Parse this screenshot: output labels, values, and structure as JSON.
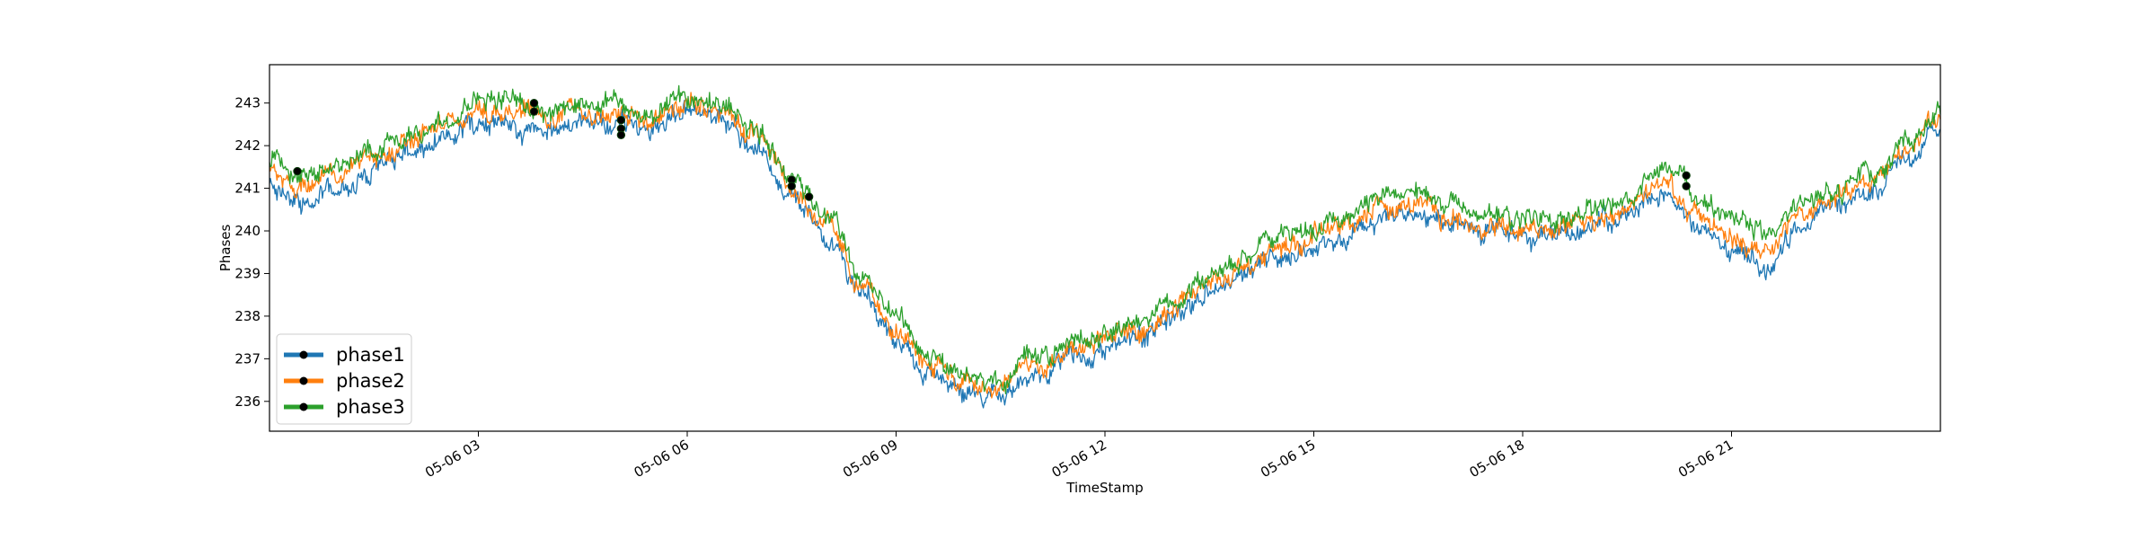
{
  "chart_data": {
    "type": "line",
    "title": "",
    "xlabel": "TimeStamp",
    "ylabel": "Phases",
    "x_unit": "hours",
    "xlim": [
      0,
      24
    ],
    "ylim": [
      235.3,
      243.9
    ],
    "grid": false,
    "legend": {
      "placement": "lower-left",
      "marker": "black dot on line"
    },
    "x_ticks": [
      {
        "value": 3,
        "label": "05-06 03"
      },
      {
        "value": 6,
        "label": "05-06 06"
      },
      {
        "value": 9,
        "label": "05-06 09"
      },
      {
        "value": 12,
        "label": "05-06 12"
      },
      {
        "value": 15,
        "label": "05-06 15"
      },
      {
        "value": 18,
        "label": "05-06 18"
      },
      {
        "value": 21,
        "label": "05-06 21"
      }
    ],
    "y_ticks": [
      {
        "value": 236,
        "label": "236"
      },
      {
        "value": 237,
        "label": "237"
      },
      {
        "value": 238,
        "label": "238"
      },
      {
        "value": 239,
        "label": "239"
      },
      {
        "value": 240,
        "label": "240"
      },
      {
        "value": 241,
        "label": "241"
      },
      {
        "value": 242,
        "label": "242"
      },
      {
        "value": 243,
        "label": "243"
      }
    ],
    "series": [
      {
        "name": "phase1",
        "color": "#1f77b4",
        "x": [
          0,
          0.5,
          1,
          1.5,
          2,
          2.5,
          3,
          3.5,
          4,
          4.5,
          5,
          5.5,
          6,
          6.5,
          7,
          7.5,
          8,
          8.5,
          9,
          9.5,
          10,
          10.5,
          11,
          11.5,
          12,
          12.5,
          13,
          13.5,
          14,
          14.5,
          15,
          15.5,
          16,
          16.5,
          17,
          17.5,
          18,
          18.5,
          19,
          19.5,
          20,
          20.5,
          21,
          21.5,
          22,
          22.5,
          23,
          23.5,
          24
        ],
        "values": [
          241.0,
          240.6,
          241.0,
          241.4,
          241.8,
          242.1,
          242.6,
          242.5,
          242.4,
          242.5,
          242.5,
          242.3,
          242.9,
          242.6,
          242.0,
          240.8,
          239.9,
          238.4,
          237.4,
          236.6,
          236.2,
          236.2,
          236.6,
          237.0,
          237.2,
          237.6,
          238.0,
          238.6,
          239.0,
          239.4,
          239.6,
          239.9,
          240.3,
          240.4,
          240.1,
          240.0,
          239.9,
          239.9,
          240.1,
          240.3,
          240.9,
          240.0,
          239.5,
          239.2,
          240.0,
          240.5,
          240.9,
          241.6,
          242.4
        ]
      },
      {
        "name": "phase2",
        "color": "#ff7f0e",
        "x": [
          0,
          0.5,
          1,
          1.5,
          2,
          2.5,
          3,
          3.5,
          4,
          4.5,
          5,
          5.5,
          6,
          6.5,
          7,
          7.5,
          8,
          8.5,
          9,
          9.5,
          10,
          10.5,
          11,
          11.5,
          12,
          12.5,
          13,
          13.5,
          14,
          14.5,
          15,
          15.5,
          16,
          16.5,
          17,
          17.5,
          18,
          18.5,
          19,
          19.5,
          20,
          20.5,
          21,
          21.5,
          22,
          22.5,
          23,
          23.5,
          24
        ],
        "values": [
          241.3,
          241.0,
          241.3,
          241.7,
          242.1,
          242.5,
          242.9,
          242.8,
          242.7,
          242.8,
          242.8,
          242.6,
          243.0,
          242.8,
          242.2,
          241.1,
          240.2,
          238.7,
          237.7,
          236.9,
          236.4,
          236.4,
          236.8,
          237.2,
          237.4,
          237.7,
          238.1,
          238.8,
          239.2,
          239.6,
          239.9,
          240.2,
          240.6,
          240.6,
          240.3,
          240.1,
          240.0,
          240.1,
          240.3,
          240.5,
          241.3,
          240.4,
          239.9,
          239.5,
          240.4,
          240.8,
          241.1,
          241.9,
          242.6
        ]
      },
      {
        "name": "phase3",
        "color": "#2ca02c",
        "x": [
          0,
          0.5,
          1,
          1.5,
          2,
          2.5,
          3,
          3.5,
          4,
          4.5,
          5,
          5.5,
          6,
          6.5,
          7,
          7.5,
          8,
          8.5,
          9,
          9.5,
          10,
          10.5,
          11,
          11.5,
          12,
          12.5,
          13,
          13.5,
          14,
          14.5,
          15,
          15.5,
          16,
          16.5,
          17,
          17.5,
          18,
          18.5,
          19,
          19.5,
          20,
          20.5,
          21,
          21.5,
          22,
          22.5,
          23,
          23.5,
          24
        ],
        "values": [
          241.6,
          241.3,
          241.5,
          241.9,
          242.2,
          242.6,
          243.1,
          243.0,
          242.9,
          242.9,
          242.9,
          242.7,
          243.1,
          242.9,
          242.3,
          241.3,
          240.4,
          238.9,
          237.9,
          237.1,
          236.5,
          236.5,
          237.0,
          237.4,
          237.6,
          237.9,
          238.3,
          239.0,
          239.4,
          239.8,
          240.1,
          240.4,
          240.9,
          240.9,
          240.6,
          240.4,
          240.2,
          240.3,
          240.5,
          240.7,
          241.5,
          240.9,
          240.3,
          239.9,
          240.7,
          241.0,
          241.3,
          242.1,
          242.9
        ]
      }
    ],
    "markers": [
      {
        "x": 0.4,
        "y": 241.4
      },
      {
        "x": 3.8,
        "y": 243.0
      },
      {
        "x": 3.8,
        "y": 242.8
      },
      {
        "x": 5.05,
        "y": 242.6
      },
      {
        "x": 5.05,
        "y": 242.4
      },
      {
        "x": 5.05,
        "y": 242.25
      },
      {
        "x": 7.5,
        "y": 241.2
      },
      {
        "x": 7.5,
        "y": 241.05
      },
      {
        "x": 7.75,
        "y": 240.8
      },
      {
        "x": 20.35,
        "y": 241.3
      },
      {
        "x": 20.35,
        "y": 241.05
      }
    ]
  }
}
